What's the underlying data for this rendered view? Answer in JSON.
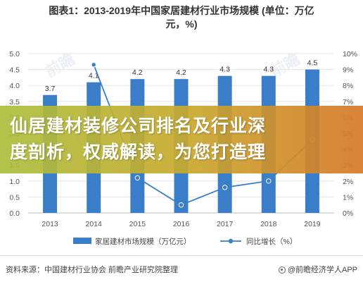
{
  "title_line1": "图表1：2013-2019年中国家居建材行业市场规模 (单位：万亿",
  "title_line2": "元，%)",
  "banner": {
    "line1": "仙居建材装修公司排名及行业深",
    "line2": "度剖析，权威解读，为您打造理"
  },
  "footer": {
    "source": "资料来源：中国建材行业协会 前瞻产业研究院整理",
    "brand": "@前瞻经济学人APP"
  },
  "watermark_text": "前瞻",
  "colors": {
    "bar": "#3a7ec9",
    "line": "#3a7ec9",
    "grid": "#e6e6e6",
    "axis_text": "#555555"
  },
  "chart_data": {
    "type": "bar",
    "categories": [
      "2013",
      "2014",
      "2015",
      "2016",
      "2017",
      "2018",
      "2019"
    ],
    "series": [
      {
        "name": "家居建材市场规模（万亿元）",
        "type": "bar",
        "axis": "left",
        "values": [
          3.7,
          4.1,
          4.2,
          4.2,
          4.3,
          4.3,
          4.5
        ],
        "labels": [
          "3.7",
          "4.1",
          "4.2",
          "4.2",
          "4.3",
          "4.3",
          "4.5"
        ]
      },
      {
        "name": "同比增长（%）",
        "type": "line",
        "axis": "right",
        "values": [
          null,
          9.3,
          2.2,
          0.5,
          1.6,
          2.0,
          4.6
        ]
      }
    ],
    "left_axis": {
      "ticks": [
        "0.0",
        "0.5",
        "1.0",
        "1.5",
        "2.0",
        "2.5",
        "3.0",
        "3.5",
        "4.0",
        "4.5",
        "5.0"
      ],
      "ylim": [
        0,
        5
      ]
    },
    "right_axis": {
      "ticks": [
        "0%",
        "1%",
        "2%",
        "3%",
        "4%",
        "5%",
        "6%",
        "7%",
        "8%",
        "9%",
        "10%"
      ],
      "ylim": [
        0,
        10
      ]
    },
    "grid": true,
    "legend_position": "bottom"
  }
}
